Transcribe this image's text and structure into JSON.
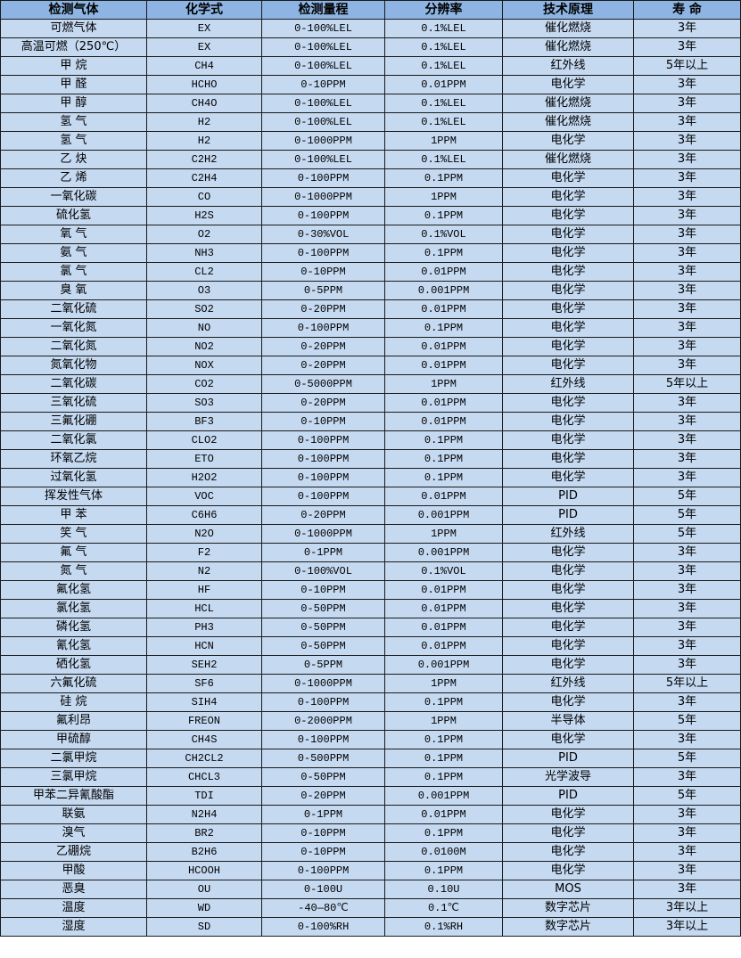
{
  "colors": {
    "header_bg": "#8db4e2",
    "row_bg": "#c5d9f1",
    "border": "#1a1a1a"
  },
  "headers": [
    "检测气体",
    "化学式",
    "检测量程",
    "分辨率",
    "技术原理",
    "寿 命"
  ],
  "rows": [
    [
      "可燃气体",
      "EX",
      "0-100%LEL",
      "0.1%LEL",
      "催化燃烧",
      "3年"
    ],
    [
      "高温可燃（250℃）",
      "EX",
      "0-100%LEL",
      "0.1%LEL",
      "催化燃烧",
      "3年"
    ],
    [
      "甲 烷",
      "CH4",
      "0-100%LEL",
      "0.1%LEL",
      "红外线",
      "5年以上"
    ],
    [
      "甲 醛",
      "HCHO",
      "0-10PPM",
      "0.01PPM",
      "电化学",
      "3年"
    ],
    [
      "甲 醇",
      "CH4O",
      "0-100%LEL",
      "0.1%LEL",
      "催化燃烧",
      "3年"
    ],
    [
      "氢 气",
      "H2",
      "0-100%LEL",
      "0.1%LEL",
      "催化燃烧",
      "3年"
    ],
    [
      "氢 气",
      "H2",
      "0-1000PPM",
      "1PPM",
      "电化学",
      "3年"
    ],
    [
      "乙 炔",
      "C2H2",
      "0-100%LEL",
      "0.1%LEL",
      "催化燃烧",
      "3年"
    ],
    [
      "乙 烯",
      "C2H4",
      "0-100PPM",
      "0.1PPM",
      "电化学",
      "3年"
    ],
    [
      "一氧化碳",
      "CO",
      "0-1000PPM",
      "1PPM",
      "电化学",
      "3年"
    ],
    [
      "硫化氢",
      "H2S",
      "0-100PPM",
      "0.1PPM",
      "电化学",
      "3年"
    ],
    [
      "氧 气",
      "O2",
      "0-30%VOL",
      "0.1%VOL",
      "电化学",
      "3年"
    ],
    [
      "氨 气",
      "NH3",
      "0-100PPM",
      "0.1PPM",
      "电化学",
      "3年"
    ],
    [
      "氯 气",
      "CL2",
      "0-10PPM",
      "0.01PPM",
      "电化学",
      "3年"
    ],
    [
      "臭 氧",
      "O3",
      "0-5PPM",
      "0.001PPM",
      "电化学",
      "3年"
    ],
    [
      "二氧化硫",
      "SO2",
      "0-20PPM",
      "0.01PPM",
      "电化学",
      "3年"
    ],
    [
      "一氧化氮",
      "NO",
      "0-100PPM",
      "0.1PPM",
      "电化学",
      "3年"
    ],
    [
      "二氧化氮",
      "NO2",
      "0-20PPM",
      "0.01PPM",
      "电化学",
      "3年"
    ],
    [
      "氮氧化物",
      "NOX",
      "0-20PPM",
      "0.01PPM",
      "电化学",
      "3年"
    ],
    [
      "二氧化碳",
      "CO2",
      "0-5000PPM",
      "1PPM",
      "红外线",
      "5年以上"
    ],
    [
      "三氧化硫",
      "SO3",
      "0-20PPM",
      "0.01PPM",
      "电化学",
      "3年"
    ],
    [
      "三氟化硼",
      "BF3",
      "0-10PPM",
      "0.01PPM",
      "电化学",
      "3年"
    ],
    [
      "二氧化氯",
      "CLO2",
      "0-100PPM",
      "0.1PPM",
      "电化学",
      "3年"
    ],
    [
      "环氧乙烷",
      "ETO",
      "0-100PPM",
      "0.1PPM",
      "电化学",
      "3年"
    ],
    [
      "过氧化氢",
      "H2O2",
      "0-100PPM",
      "0.1PPM",
      "电化学",
      "3年"
    ],
    [
      "挥发性气体",
      "VOC",
      "0-100PPM",
      "0.01PPM",
      "PID",
      "5年"
    ],
    [
      "甲 苯",
      "C6H6",
      "0-20PPM",
      "0.001PPM",
      "PID",
      "5年"
    ],
    [
      "笑 气",
      "N2O",
      "0-1000PPM",
      "1PPM",
      "红外线",
      "5年"
    ],
    [
      "氟 气",
      "F2",
      "0-1PPM",
      "0.001PPM",
      "电化学",
      "3年"
    ],
    [
      "氮 气",
      "N2",
      "0-100%VOL",
      "0.1%VOL",
      "电化学",
      "3年"
    ],
    [
      "氟化氢",
      "HF",
      "0-10PPM",
      "0.01PPM",
      "电化学",
      "3年"
    ],
    [
      "氯化氢",
      "HCL",
      "0-50PPM",
      "0.01PPM",
      "电化学",
      "3年"
    ],
    [
      "磷化氢",
      "PH3",
      "0-50PPM",
      "0.01PPM",
      "电化学",
      "3年"
    ],
    [
      "氰化氢",
      "HCN",
      "0-50PPM",
      "0.01PPM",
      "电化学",
      "3年"
    ],
    [
      "硒化氢",
      "SEH2",
      "0-5PPM",
      "0.001PPM",
      "电化学",
      "3年"
    ],
    [
      "六氟化硫",
      "SF6",
      "0-1000PPM",
      "1PPM",
      "红外线",
      "5年以上"
    ],
    [
      "硅 烷",
      "SIH4",
      "0-100PPM",
      "0.1PPM",
      "电化学",
      "3年"
    ],
    [
      "氟利昂",
      "FREON",
      "0-2000PPM",
      "1PPM",
      "半导体",
      "5年"
    ],
    [
      "甲硫醇",
      "CH4S",
      "0-100PPM",
      "0.1PPM",
      "电化学",
      "3年"
    ],
    [
      "二氯甲烷",
      "CH2CL2",
      "0-500PPM",
      "0.1PPM",
      "PID",
      "5年"
    ],
    [
      "三氯甲烷",
      "CHCL3",
      "0-50PPM",
      "0.1PPM",
      "光学波导",
      "3年"
    ],
    [
      "甲苯二异氰酸酯",
      "TDI",
      "0-20PPM",
      "0.001PPM",
      "PID",
      "5年"
    ],
    [
      "联氨",
      "N2H4",
      "0-1PPM",
      "0.01PPM",
      "电化学",
      "3年"
    ],
    [
      "溴气",
      "BR2",
      "0-10PPM",
      "0.1PPM",
      "电化学",
      "3年"
    ],
    [
      "乙硼烷",
      "B2H6",
      "0-10PPM",
      "0.0100M",
      "电化学",
      "3年"
    ],
    [
      "甲酸",
      "HCOOH",
      "0-100PPM",
      "0.1PPM",
      "电化学",
      "3年"
    ],
    [
      "恶臭",
      "OU",
      "0-100U",
      "0.10U",
      "MOS",
      "3年"
    ],
    [
      "温度",
      "WD",
      "-40—80℃",
      "0.1℃",
      "数字芯片",
      "3年以上"
    ],
    [
      "湿度",
      "SD",
      "0-100%RH",
      "0.1%RH",
      "数字芯片",
      "3年以上"
    ]
  ]
}
